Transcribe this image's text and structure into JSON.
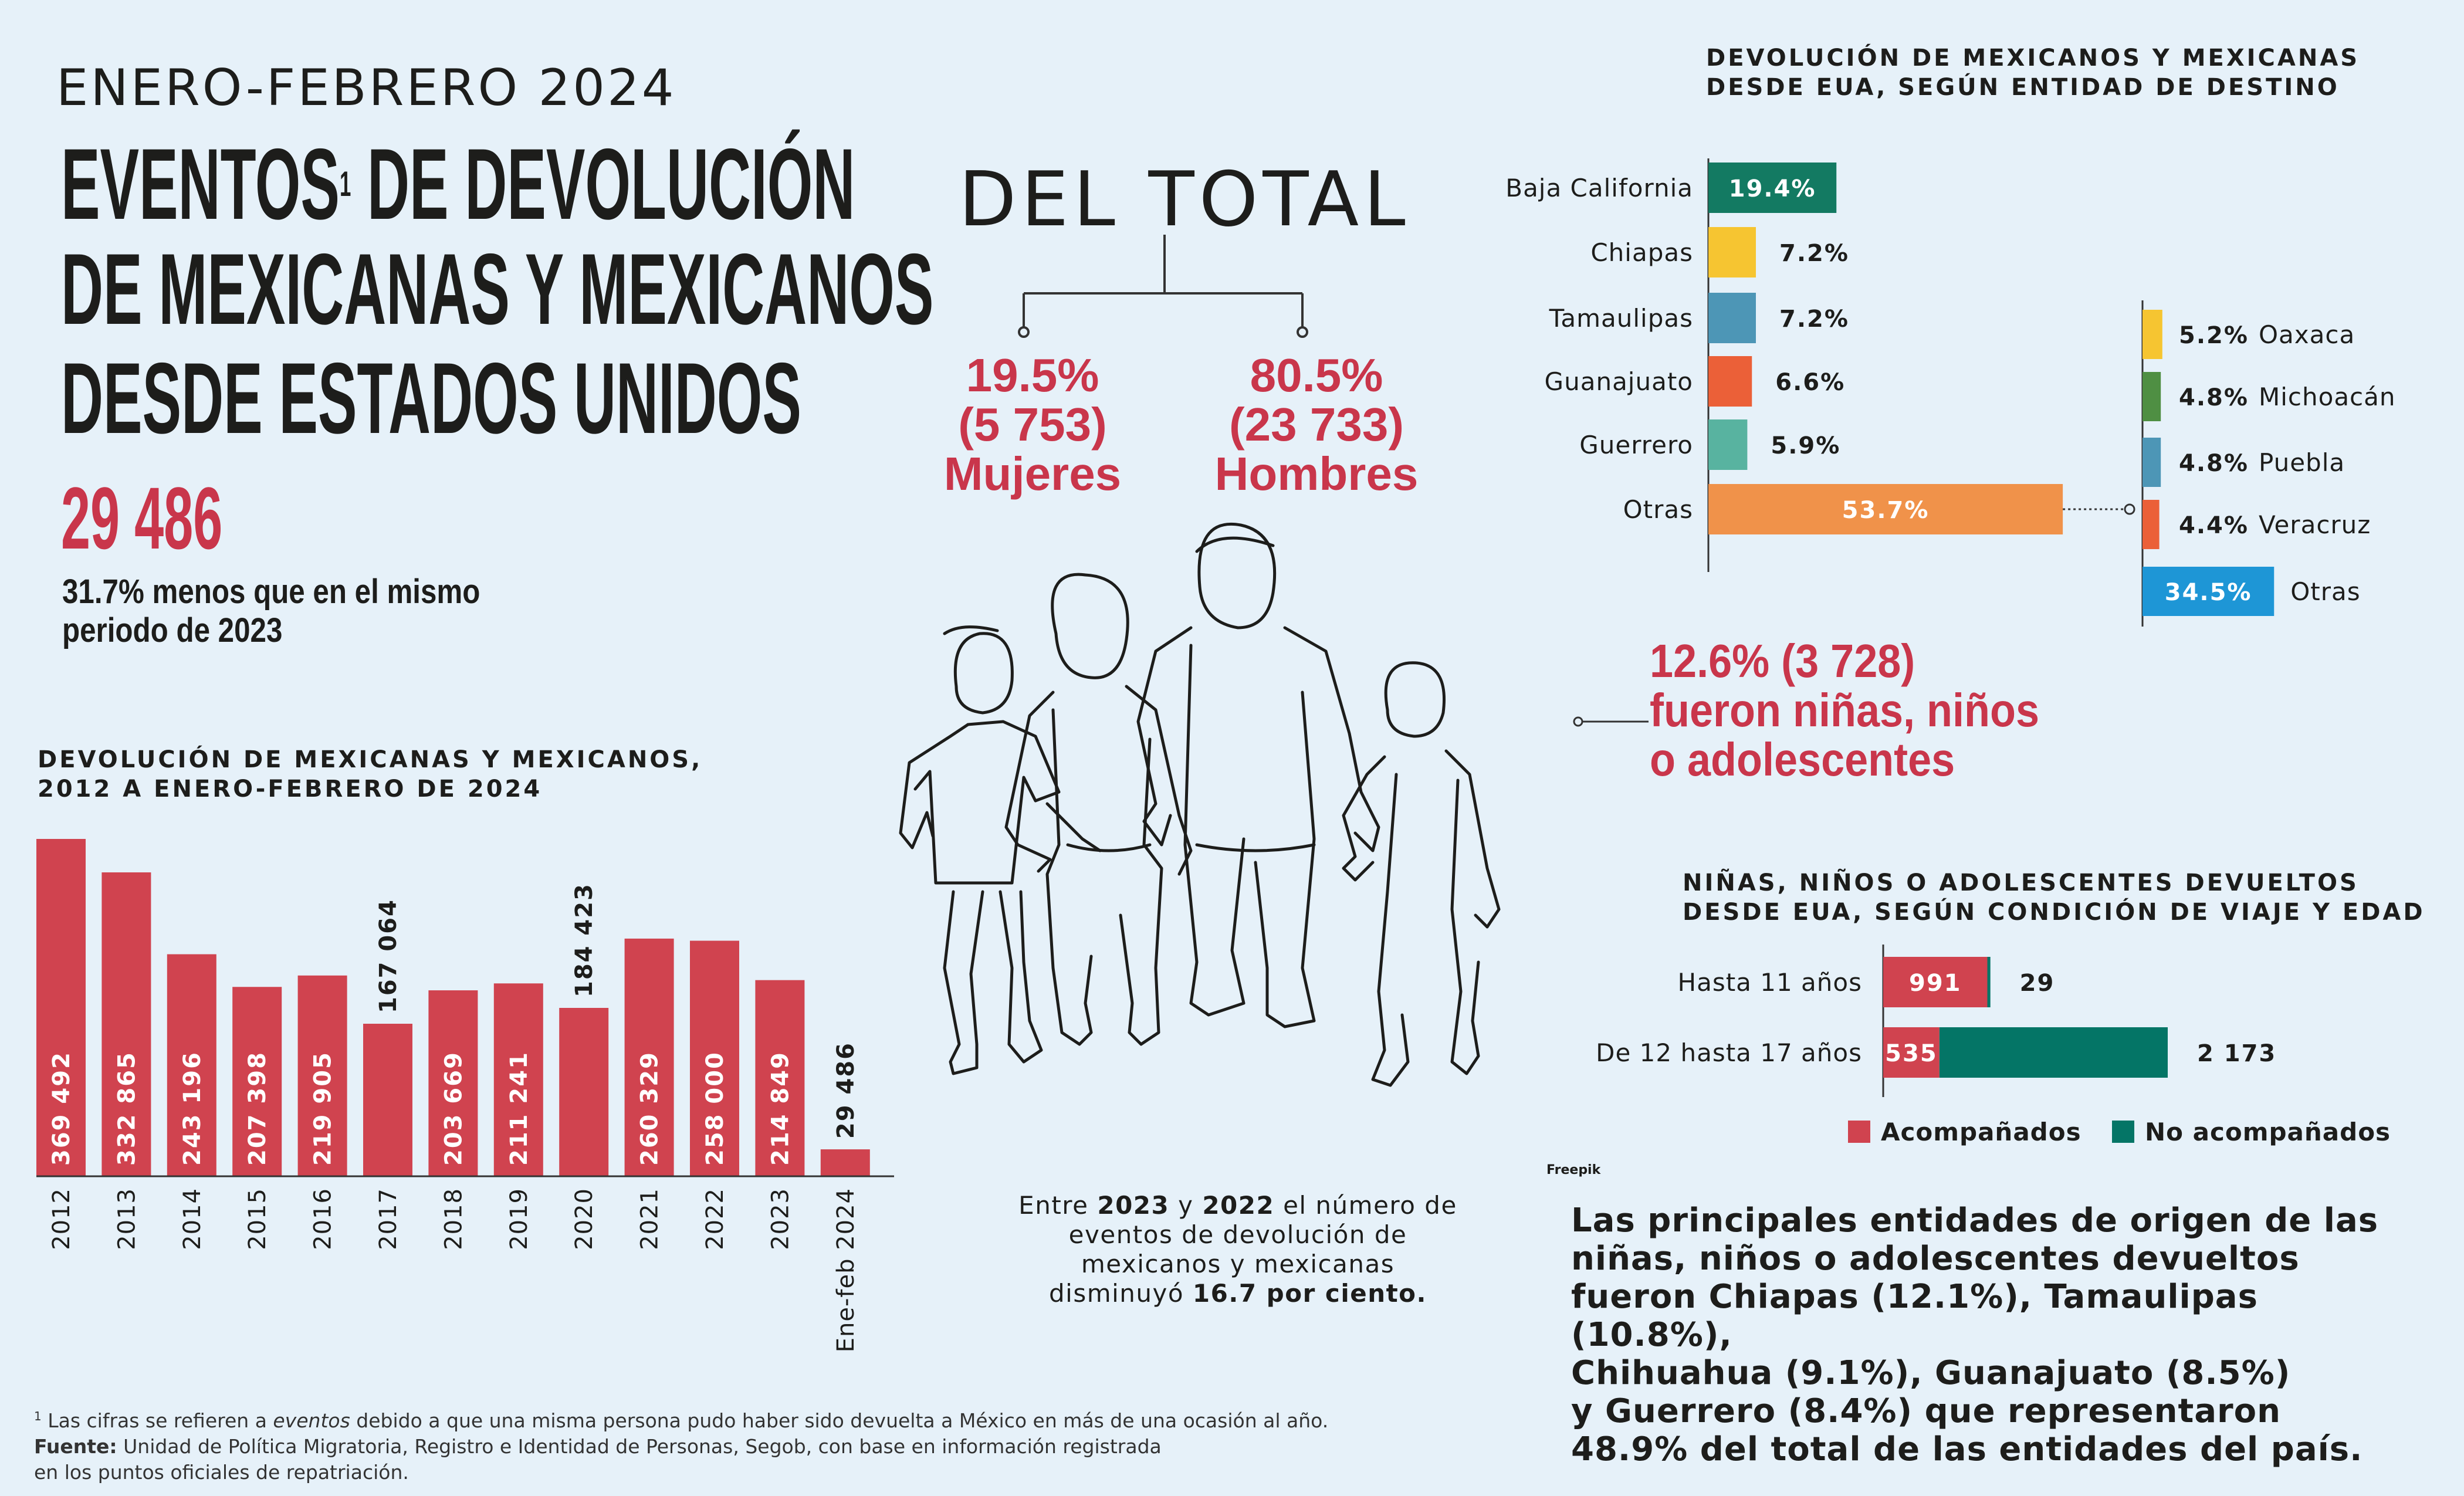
{
  "header": {
    "period": "ENERO-FEBRERO 2024",
    "title_lines": [
      "EVENTOS",
      "DE DEVOLUCIÓN",
      "DE MEXICANAS Y MEXICANOS",
      "DESDE ESTADOS UNIDOS"
    ],
    "footnote_mark": "1",
    "total": "29 486",
    "comparison": [
      "31.7% menos que en el mismo",
      "periodo de 2023"
    ]
  },
  "del_total": {
    "title": "DEL TOTAL",
    "women": {
      "pct": "19.5%",
      "count": "(5 753)",
      "label": "Mujeres"
    },
    "men": {
      "pct": "80.5%",
      "count": "(23 733)",
      "label": "Hombres"
    }
  },
  "children": {
    "lines": [
      "12.6% (3 728)",
      "fueron niñas, niños",
      "o adolescentes"
    ]
  },
  "image_credit": "Freepik",
  "change_note": {
    "lines": [
      [
        {
          "t": "Entre ",
          "b": false
        },
        {
          "t": "2023",
          "b": true
        },
        {
          "t": " y ",
          "b": false
        },
        {
          "t": "2022",
          "b": true
        },
        {
          "t": " el número de",
          "b": false
        }
      ],
      [
        {
          "t": "eventos de devolución de",
          "b": false
        }
      ],
      [
        {
          "t": "mexicanos y mexicanas",
          "b": false
        }
      ],
      [
        {
          "t": "disminuyó ",
          "b": false
        },
        {
          "t": "16.7 por ciento.",
          "b": true
        }
      ]
    ]
  },
  "origin_note": {
    "lines": [
      "Las principales entidades de origen de las",
      "niñas, niños o adolescentes devueltos",
      "fueron Chiapas (12.1%), Tamaulipas (10.8%),",
      "Chihuahua (9.1%), Guanajuato (8.5%)",
      "y Guerrero (8.4%) que representaron",
      "48.9% del total de las entidades del país."
    ]
  },
  "footnotes": {
    "note1_parts": [
      "Las cifras se refieren a ",
      "eventos",
      " debido a que una misma persona pudo haber sido devuelta a México en más de una ocasión al año."
    ],
    "source_label": "Fuente:",
    "source_lines": [
      "Unidad de Política Migratoria, Registro e Identidad de Personas, Segob, con base en información registrada",
      "en los puntos oficiales de repatriación."
    ]
  },
  "chart_data": [
    {
      "type": "bar",
      "title": "DEVOLUCIÓN DE MEXICANAS Y MEXICANOS, 2012 A ENERO-FEBRERO DE 2024",
      "categories": [
        "2012",
        "2013",
        "2014",
        "2015",
        "2016",
        "2017",
        "2018",
        "2019",
        "2020",
        "2021",
        "2022",
        "2023",
        "Ene-feb 2024"
      ],
      "values": [
        369492,
        332865,
        243196,
        207398,
        219905,
        167064,
        203669,
        211241,
        184423,
        260329,
        258000,
        214849,
        29486
      ],
      "value_labels": [
        "369 492",
        "332 865",
        "243 196",
        "207 398",
        "219 905",
        "167 064",
        "203 669",
        "211 241",
        "184 423",
        "260 329",
        "258 000",
        "214 849",
        "29 486"
      ],
      "ylim": [
        0,
        369492
      ],
      "color": "#d0434f"
    },
    {
      "type": "bar",
      "title": "DEVOLUCIÓN DE MEXICANOS Y MEXICANAS DESDE EUA, SEGÚN ENTIDAD DE DESTINO",
      "categories": [
        "Baja California",
        "Chiapas",
        "Tamaulipas",
        "Guanajuato",
        "Guerrero",
        "Otras"
      ],
      "values": [
        19.4,
        7.2,
        7.2,
        6.6,
        5.9,
        53.7
      ],
      "labels": [
        "19.4%",
        "7.2%",
        "7.2%",
        "6.6%",
        "5.9%",
        "53.7%"
      ],
      "colors": [
        "#137a62",
        "#f6c531",
        "#4d96b6",
        "#eb6038",
        "#58b3a0",
        "#f0924a"
      ],
      "breakdown_of": "Otras",
      "breakdown": {
        "categories": [
          "Oaxaca",
          "Michoacán",
          "Puebla",
          "Veracruz",
          "Otras"
        ],
        "values": [
          5.2,
          4.8,
          4.8,
          4.4,
          34.5
        ],
        "labels": [
          "5.2%",
          "4.8%",
          "4.8%",
          "4.4%",
          "34.5%"
        ],
        "colors": [
          "#f6c531",
          "#4f8f43",
          "#4d96b6",
          "#eb6038",
          "#1e96d6"
        ]
      }
    },
    {
      "type": "bar",
      "title": "NIÑAS, NIÑOS O ADOLESCENTES DEVUELTOS DESDE EUA, SEGÚN CONDICIÓN DE VIAJE Y EDAD",
      "stacked": true,
      "categories": [
        "Hasta 11 años",
        "De 12 hasta 17 años"
      ],
      "series": [
        {
          "name": "Acompañados",
          "values": [
            991,
            535
          ],
          "labels": [
            "991",
            "535"
          ],
          "color": "#d0434f"
        },
        {
          "name": "No acompañados",
          "values": [
            29,
            2173
          ],
          "labels": [
            "29",
            "2 173"
          ],
          "color": "#047566"
        }
      ],
      "legend": "bottom"
    }
  ]
}
